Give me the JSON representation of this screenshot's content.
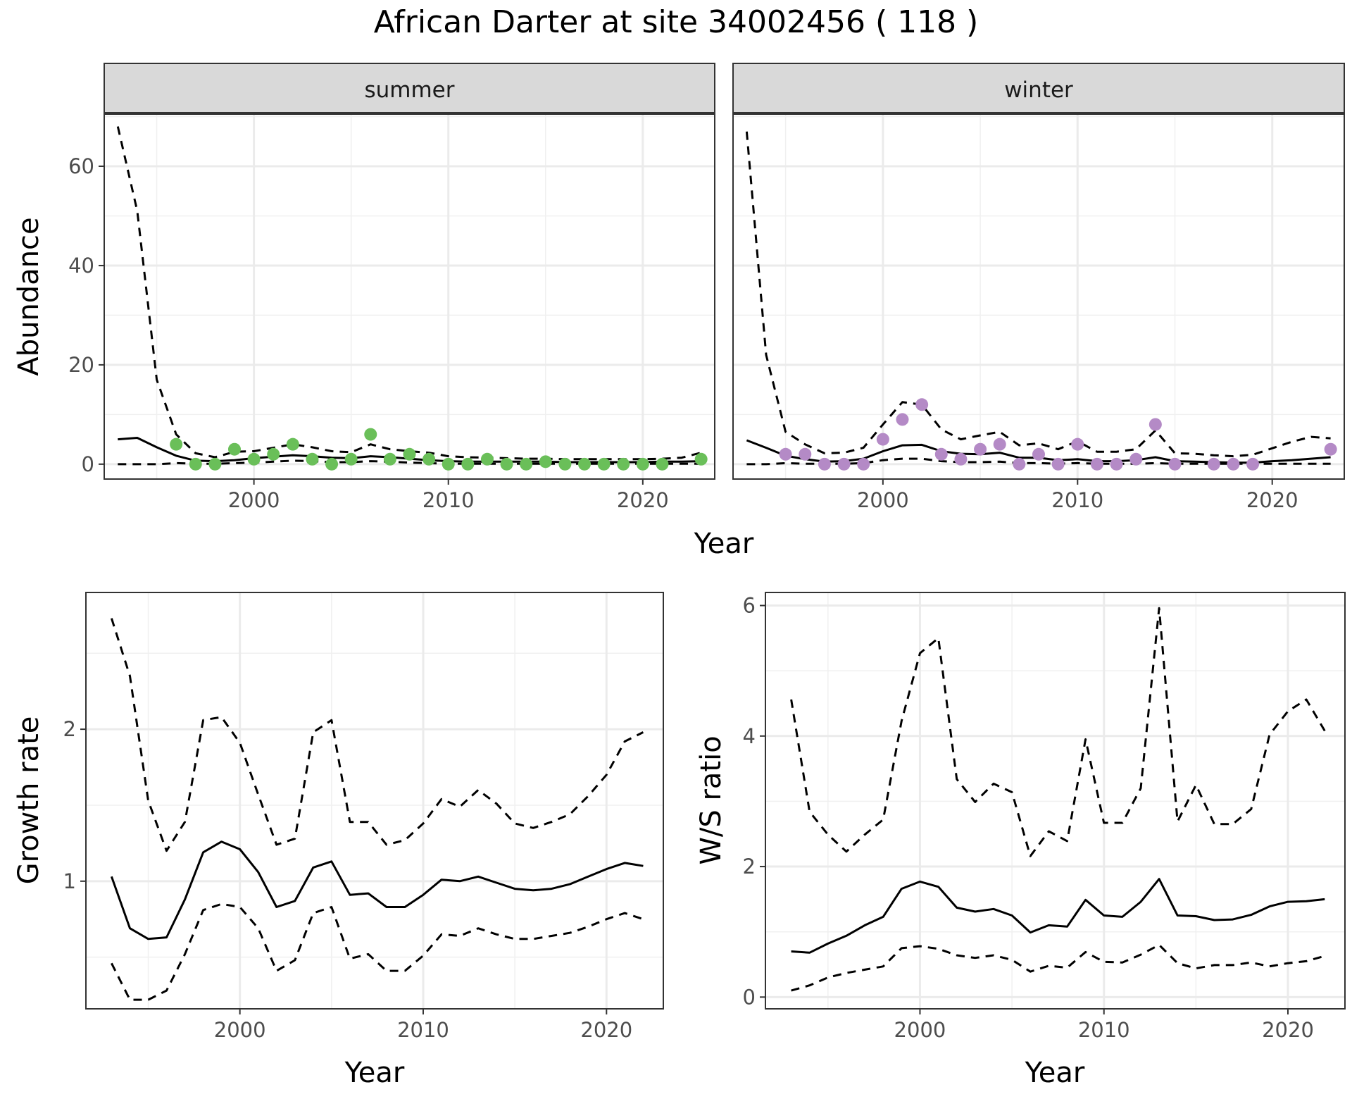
{
  "title": "African Darter at site 34002456 ( 118 )",
  "chart_data": [
    {
      "id": "summer",
      "type": "line",
      "strip": "summer",
      "xlabel": "Year",
      "ylabel": "Abundance",
      "xlim": [
        1992.3,
        2023.7
      ],
      "ylim": [
        -3,
        70.5
      ],
      "xticks": [
        2000,
        2010,
        2020
      ],
      "yticks": [
        0,
        20,
        40,
        60
      ],
      "grid": true,
      "points_color": "#6abf59",
      "x": [
        1993,
        1994,
        1995,
        1996,
        1997,
        1998,
        1999,
        2000,
        2001,
        2002,
        2003,
        2004,
        2005,
        2006,
        2007,
        2008,
        2009,
        2010,
        2011,
        2012,
        2013,
        2014,
        2015,
        2016,
        2017,
        2018,
        2019,
        2020,
        2021,
        2022,
        2023
      ],
      "series": [
        {
          "style": "solid",
          "values": [
            5,
            5.3,
            3.4,
            1.7,
            0.7,
            0.6,
            0.8,
            1.2,
            1.5,
            1.8,
            1.6,
            1.3,
            1.2,
            1.6,
            1.4,
            1.1,
            0.8,
            0.6,
            0.5,
            0.5,
            0.5,
            0.5,
            0.5,
            0.4,
            0.4,
            0.4,
            0.4,
            0.4,
            0.5,
            0.5,
            0.6
          ]
        },
        {
          "style": "dashed",
          "values": [
            68,
            51,
            17,
            6,
            2.2,
            1.4,
            2.5,
            2.6,
            3.3,
            4,
            3.4,
            2.6,
            2.4,
            4,
            3,
            2.6,
            2.3,
            1.6,
            1.4,
            1.3,
            1.2,
            1.1,
            1.1,
            1,
            1,
            1,
            1,
            1,
            1.1,
            1.3,
            2.3
          ]
        },
        {
          "style": "dashed",
          "values": [
            0,
            0,
            0,
            0.2,
            0.1,
            0.1,
            0.2,
            0.3,
            0.5,
            0.7,
            0.6,
            0.4,
            0.4,
            0.6,
            0.5,
            0.3,
            0.2,
            0.1,
            0.1,
            0.1,
            0.1,
            0.1,
            0.1,
            0.1,
            0.1,
            0.1,
            0.1,
            0.1,
            0.1,
            0.1,
            0.1
          ]
        }
      ],
      "points": [
        [
          1996,
          4
        ],
        [
          1997,
          0
        ],
        [
          1998,
          0
        ],
        [
          1999,
          3
        ],
        [
          2000,
          1
        ],
        [
          2001,
          2
        ],
        [
          2002,
          4
        ],
        [
          2003,
          1
        ],
        [
          2004,
          0
        ],
        [
          2005,
          1
        ],
        [
          2006,
          6
        ],
        [
          2007,
          1
        ],
        [
          2008,
          2
        ],
        [
          2009,
          1
        ],
        [
          2010,
          0
        ],
        [
          2011,
          0
        ],
        [
          2012,
          1
        ],
        [
          2013,
          0
        ],
        [
          2014,
          0
        ],
        [
          2015,
          0.5
        ],
        [
          2016,
          0
        ],
        [
          2017,
          0
        ],
        [
          2018,
          0
        ],
        [
          2019,
          0
        ],
        [
          2020,
          0
        ],
        [
          2021,
          0
        ],
        [
          2023,
          1
        ]
      ]
    },
    {
      "id": "winter",
      "type": "line",
      "strip": "winter",
      "xlabel": "Year",
      "ylabel": "Abundance",
      "xlim": [
        1992.3,
        2023.7
      ],
      "ylim": [
        -3,
        70.5
      ],
      "xticks": [
        2000,
        2010,
        2020
      ],
      "yticks": [
        0,
        20,
        40,
        60
      ],
      "grid": true,
      "points_color": "#b48ac6",
      "x": [
        1993,
        1994,
        1995,
        1996,
        1997,
        1998,
        1999,
        2000,
        2001,
        2002,
        2003,
        2004,
        2005,
        2006,
        2007,
        2008,
        2009,
        2010,
        2011,
        2012,
        2013,
        2014,
        2015,
        2016,
        2017,
        2018,
        2019,
        2020,
        2021,
        2022,
        2023
      ],
      "series": [
        {
          "style": "solid",
          "values": [
            4.8,
            3.3,
            1.7,
            1,
            0.5,
            0.6,
            1.1,
            2.6,
            3.8,
            3.9,
            2.6,
            2.1,
            2,
            2.3,
            1.3,
            1.3,
            0.8,
            1,
            0.6,
            0.6,
            0.8,
            1.4,
            0.6,
            0.5,
            0.4,
            0.3,
            0.3,
            0.6,
            0.8,
            1.1,
            1.4
          ]
        },
        {
          "style": "dashed",
          "values": [
            67,
            22,
            6.5,
            4,
            2.2,
            2.3,
            3.3,
            8,
            12.5,
            12,
            7,
            5,
            5.8,
            6.5,
            3.8,
            4.2,
            3,
            4.6,
            2.5,
            2.5,
            3,
            6.8,
            2.2,
            2.1,
            1.8,
            1.6,
            1.9,
            3.2,
            4.5,
            5.5,
            5.2
          ]
        },
        {
          "style": "dashed",
          "values": [
            0,
            0,
            0.2,
            0.1,
            0.1,
            0.1,
            0.2,
            0.8,
            1.1,
            1.1,
            0.6,
            0.4,
            0.4,
            0.5,
            0.2,
            0.2,
            0.1,
            0.2,
            0.1,
            0.1,
            0.1,
            0.2,
            0.1,
            0.1,
            0.1,
            0.1,
            0.1,
            0.1,
            0.1,
            0.1,
            0.1
          ]
        }
      ],
      "points": [
        [
          1995,
          2
        ],
        [
          1996,
          2
        ],
        [
          1997,
          0
        ],
        [
          1998,
          0
        ],
        [
          1999,
          0
        ],
        [
          2000,
          5
        ],
        [
          2001,
          9
        ],
        [
          2002,
          12
        ],
        [
          2003,
          2
        ],
        [
          2004,
          1
        ],
        [
          2005,
          3
        ],
        [
          2006,
          4
        ],
        [
          2007,
          0
        ],
        [
          2008,
          2
        ],
        [
          2009,
          0
        ],
        [
          2010,
          4
        ],
        [
          2011,
          0
        ],
        [
          2012,
          0
        ],
        [
          2013,
          1
        ],
        [
          2014,
          8
        ],
        [
          2015,
          0
        ],
        [
          2017,
          0
        ],
        [
          2018,
          0
        ],
        [
          2019,
          0
        ],
        [
          2023,
          3
        ]
      ]
    },
    {
      "id": "growth",
      "type": "line",
      "xlabel": "Year",
      "ylabel": "Growth rate",
      "xlim": [
        1991.6,
        2023.1
      ],
      "ylim": [
        0.16,
        2.9
      ],
      "xticks": [
        2000,
        2010,
        2020
      ],
      "yticks": [
        1,
        2
      ],
      "grid": true,
      "x": [
        1993,
        1994,
        1995,
        1996,
        1997,
        1998,
        1999,
        2000,
        2001,
        2002,
        2003,
        2004,
        2005,
        2006,
        2007,
        2008,
        2009,
        2010,
        2011,
        2012,
        2013,
        2014,
        2015,
        2016,
        2017,
        2018,
        2019,
        2020,
        2021,
        2022
      ],
      "series": [
        {
          "style": "solid",
          "values": [
            1.03,
            0.69,
            0.62,
            0.63,
            0.88,
            1.19,
            1.26,
            1.21,
            1.06,
            0.83,
            0.87,
            1.09,
            1.13,
            0.91,
            0.92,
            0.83,
            0.83,
            0.91,
            1.01,
            1,
            1.03,
            0.99,
            0.95,
            0.94,
            0.95,
            0.98,
            1.03,
            1.08,
            1.12,
            1.1
          ]
        },
        {
          "style": "dashed",
          "values": [
            2.73,
            2.35,
            1.53,
            1.2,
            1.39,
            2.06,
            2.08,
            1.91,
            1.57,
            1.24,
            1.28,
            1.98,
            2.06,
            1.39,
            1.39,
            1.24,
            1.27,
            1.38,
            1.54,
            1.49,
            1.6,
            1.51,
            1.38,
            1.35,
            1.39,
            1.44,
            1.56,
            1.7,
            1.92,
            1.98
          ]
        },
        {
          "style": "dashed",
          "values": [
            0.46,
            0.22,
            0.22,
            0.28,
            0.52,
            0.81,
            0.85,
            0.83,
            0.69,
            0.41,
            0.48,
            0.79,
            0.83,
            0.49,
            0.52,
            0.41,
            0.41,
            0.51,
            0.65,
            0.64,
            0.69,
            0.65,
            0.62,
            0.62,
            0.64,
            0.66,
            0.7,
            0.75,
            0.79,
            0.75
          ]
        }
      ]
    },
    {
      "id": "ratio",
      "type": "line",
      "xlabel": "Year",
      "ylabel": "W/S ratio",
      "xlim": [
        1991.6,
        2023.1
      ],
      "ylim": [
        -0.18,
        6.2
      ],
      "xticks": [
        2000,
        2010,
        2020
      ],
      "yticks": [
        0,
        2,
        4,
        6
      ],
      "grid": true,
      "x": [
        1993,
        1994,
        1995,
        1996,
        1997,
        1998,
        1999,
        2000,
        2001,
        2002,
        2003,
        2004,
        2005,
        2006,
        2007,
        2008,
        2009,
        2010,
        2011,
        2012,
        2013,
        2014,
        2015,
        2016,
        2017,
        2018,
        2019,
        2020,
        2021,
        2022
      ],
      "series": [
        {
          "style": "solid",
          "values": [
            0.7,
            0.68,
            0.82,
            0.94,
            1.1,
            1.23,
            1.66,
            1.77,
            1.69,
            1.37,
            1.31,
            1.35,
            1.25,
            0.99,
            1.1,
            1.08,
            1.49,
            1.25,
            1.23,
            1.46,
            1.81,
            1.25,
            1.24,
            1.18,
            1.19,
            1.26,
            1.39,
            1.46,
            1.47,
            1.5
          ]
        },
        {
          "style": "dashed",
          "values": [
            4.56,
            2.84,
            2.49,
            2.23,
            2.49,
            2.72,
            4.23,
            5.27,
            5.5,
            3.34,
            2.99,
            3.27,
            3.14,
            2.16,
            2.54,
            2.39,
            3.95,
            2.67,
            2.67,
            3.2,
            5.96,
            2.69,
            3.25,
            2.65,
            2.65,
            2.88,
            4.02,
            4.38,
            4.56,
            4.08
          ]
        },
        {
          "style": "dashed",
          "values": [
            0.1,
            0.18,
            0.3,
            0.37,
            0.42,
            0.47,
            0.75,
            0.78,
            0.74,
            0.64,
            0.6,
            0.64,
            0.57,
            0.39,
            0.48,
            0.45,
            0.69,
            0.54,
            0.53,
            0.65,
            0.8,
            0.52,
            0.44,
            0.49,
            0.49,
            0.53,
            0.47,
            0.52,
            0.55,
            0.63
          ]
        }
      ]
    }
  ]
}
